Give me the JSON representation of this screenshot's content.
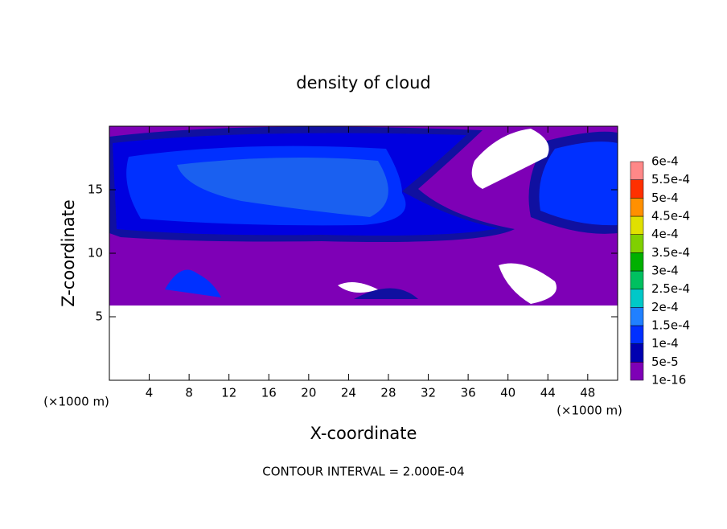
{
  "chart_data": {
    "type": "contour",
    "title": "density of cloud",
    "xlabel": "X-coordinate",
    "ylabel": "Z-coordinate",
    "x_unit": "(×1000 m)",
    "note": "CONTOUR INTERVAL = 2.000E-04",
    "xlim": [
      0,
      51
    ],
    "xticks": [
      4,
      8,
      12,
      16,
      20,
      24,
      28,
      32,
      36,
      40,
      44,
      48
    ],
    "ylim": [
      0,
      20
    ],
    "yticks": [
      5,
      10,
      15
    ],
    "levels": [
      {
        "value": 1e-16,
        "label": "1e-16"
      },
      {
        "value": 5e-05,
        "label": "5e-5"
      },
      {
        "value": 0.0001,
        "label": "1e-4"
      },
      {
        "value": 0.00015,
        "label": "1.5e-4"
      },
      {
        "value": 0.0002,
        "label": "2e-4"
      },
      {
        "value": 0.00025,
        "label": "2.5e-4"
      },
      {
        "value": 0.0003,
        "label": "3e-4"
      },
      {
        "value": 0.00035,
        "label": "3.5e-4"
      },
      {
        "value": 0.0004,
        "label": "4e-4"
      },
      {
        "value": 0.00045,
        "label": "4.5e-4"
      },
      {
        "value": 0.0005,
        "label": "5e-4"
      },
      {
        "value": 0.00055,
        "label": "5.5e-4"
      },
      {
        "value": 0.0006,
        "label": "6e-4"
      }
    ],
    "level_colors": [
      "#7e00b6",
      "#0000b0",
      "#0030ff",
      "#2080ff",
      "#00c8c8",
      "#00c060",
      "#00b000",
      "#80d000",
      "#e0e000",
      "#ff9000",
      "#ff3000",
      "#ff8888"
    ]
  }
}
